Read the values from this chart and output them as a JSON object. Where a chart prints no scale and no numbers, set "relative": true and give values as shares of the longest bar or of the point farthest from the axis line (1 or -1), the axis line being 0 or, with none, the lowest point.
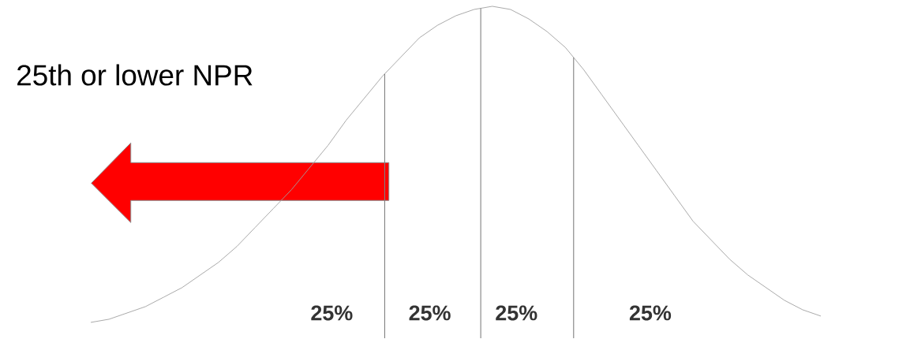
{
  "chart_data": {
    "type": "line",
    "relative": true,
    "categories": [
      null,
      null,
      null,
      null,
      null,
      null,
      null,
      null,
      null,
      null,
      null,
      null,
      null,
      null,
      null,
      null,
      null,
      null,
      null,
      null,
      null,
      null,
      null,
      null,
      null,
      null,
      null,
      null,
      null,
      null,
      null,
      null,
      null,
      null,
      null,
      null,
      null,
      null,
      null,
      null,
      null
    ],
    "series": [
      {
        "color": "#a0a0a0",
        "values": [
          0,
          0.01,
          0.03,
          0.05,
          0.08,
          0.11,
          0.15,
          0.19,
          0.24,
          0.3,
          0.36,
          0.42,
          0.49,
          0.56,
          0.64,
          0.71,
          0.78,
          0.84,
          0.9,
          0.94,
          0.97,
          0.99,
          1,
          0.99,
          0.96,
          0.92,
          0.87,
          0.8,
          0.72,
          0.64,
          0.56,
          0.48,
          0.4,
          0.32,
          0.26,
          0.2,
          0.15,
          0.11,
          0.07,
          0.04,
          0.02
        ]
      }
    ],
    "annotations": [
      "25th or lower NPR",
      "25%",
      "25%",
      "25%",
      "25%"
    ],
    "marker": "none",
    "line_style": "solid"
  }
}
